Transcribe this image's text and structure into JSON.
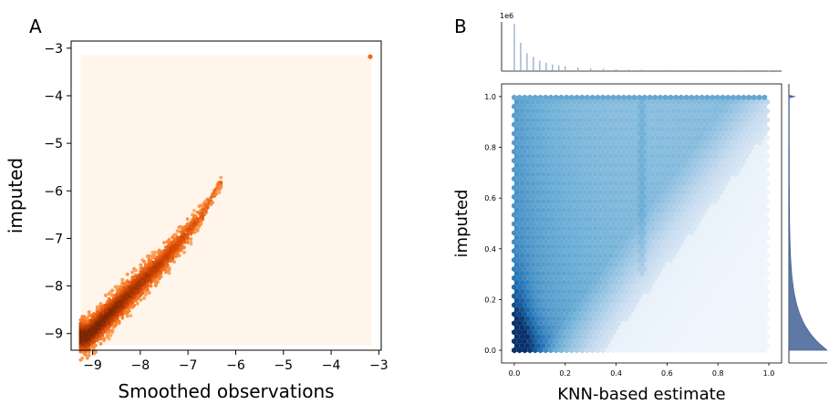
{
  "panels": {
    "a_letter": "A",
    "b_letter": "B"
  },
  "chart_data": [
    {
      "id": "A",
      "type": "heatmap",
      "subtype": "hexbin",
      "title": "",
      "xlabel": "Smoothed observations",
      "ylabel": "imputed",
      "xlim": [
        -9.45,
        -2.95
      ],
      "ylim": [
        -9.35,
        -2.85
      ],
      "xticks": [
        -9,
        -8,
        -7,
        -6,
        -5,
        -4,
        -3
      ],
      "yticks": [
        -9,
        -8,
        -7,
        -6,
        -5,
        -4,
        -3
      ],
      "xtick_labels": [
        "−9",
        "−8",
        "−7",
        "−6",
        "−5",
        "−4",
        "−3"
      ],
      "ytick_labels": [
        "−9",
        "−8",
        "−7",
        "−6",
        "−5",
        "−4",
        "−3"
      ],
      "colormap": "Oranges",
      "background_extent": {
        "x": [
          -9.25,
          -3.15
        ],
        "y": [
          -9.25,
          -3.15
        ]
      },
      "background_color": "#fff5eb",
      "density_trend": [
        {
          "x": -9.1,
          "y": -9.05,
          "spread": 0.28
        },
        {
          "x": -8.6,
          "y": -8.55,
          "spread": 0.28
        },
        {
          "x": -8.1,
          "y": -8.05,
          "spread": 0.26
        },
        {
          "x": -7.6,
          "y": -7.55,
          "spread": 0.24
        },
        {
          "x": -7.1,
          "y": -7.0,
          "spread": 0.2
        },
        {
          "x": -6.7,
          "y": -6.5,
          "spread": 0.14
        },
        {
          "x": -6.3,
          "y": -5.8,
          "spread": 0.08
        }
      ],
      "outlier_points": [
        {
          "x": -3.18,
          "y": -3.18
        }
      ],
      "grid": false,
      "legend": "none"
    },
    {
      "id": "B",
      "type": "heatmap",
      "subtype": "hexbin jointplot with marginal histograms",
      "title": "",
      "xlabel": "KNN-based estimate",
      "ylabel": "imputed",
      "xlim": [
        -0.05,
        1.05
      ],
      "ylim": [
        -0.05,
        1.05
      ],
      "xticks": [
        0.0,
        0.2,
        0.4,
        0.6,
        0.8,
        1.0
      ],
      "yticks": [
        0.0,
        0.2,
        0.4,
        0.6,
        0.8,
        1.0
      ],
      "xtick_labels": [
        "0.0",
        "0.2",
        "0.4",
        "0.6",
        "0.8",
        "1.0"
      ],
      "ytick_labels": [
        "0.0",
        "0.2",
        "0.4",
        "0.6",
        "0.8",
        "1.0"
      ],
      "colormap": "Blues",
      "top_marginal": {
        "scale_label": "1e6",
        "bins": [
          0.0,
          0.025,
          0.05,
          0.075,
          0.1,
          0.125,
          0.15,
          0.175,
          0.2,
          0.25,
          0.3,
          0.35,
          0.4,
          0.45,
          0.5,
          0.6,
          0.7,
          0.8,
          0.9,
          1.0
        ],
        "relative_heights": [
          1.0,
          0.6,
          0.38,
          0.3,
          0.22,
          0.18,
          0.14,
          0.12,
          0.1,
          0.08,
          0.06,
          0.05,
          0.04,
          0.035,
          0.03,
          0.025,
          0.02,
          0.018,
          0.015,
          0.01
        ]
      },
      "right_marginal": {
        "shape": "density concentrated near 0, long tail toward 1, small spike at 1.0"
      },
      "grid": false,
      "legend": "none"
    }
  ]
}
